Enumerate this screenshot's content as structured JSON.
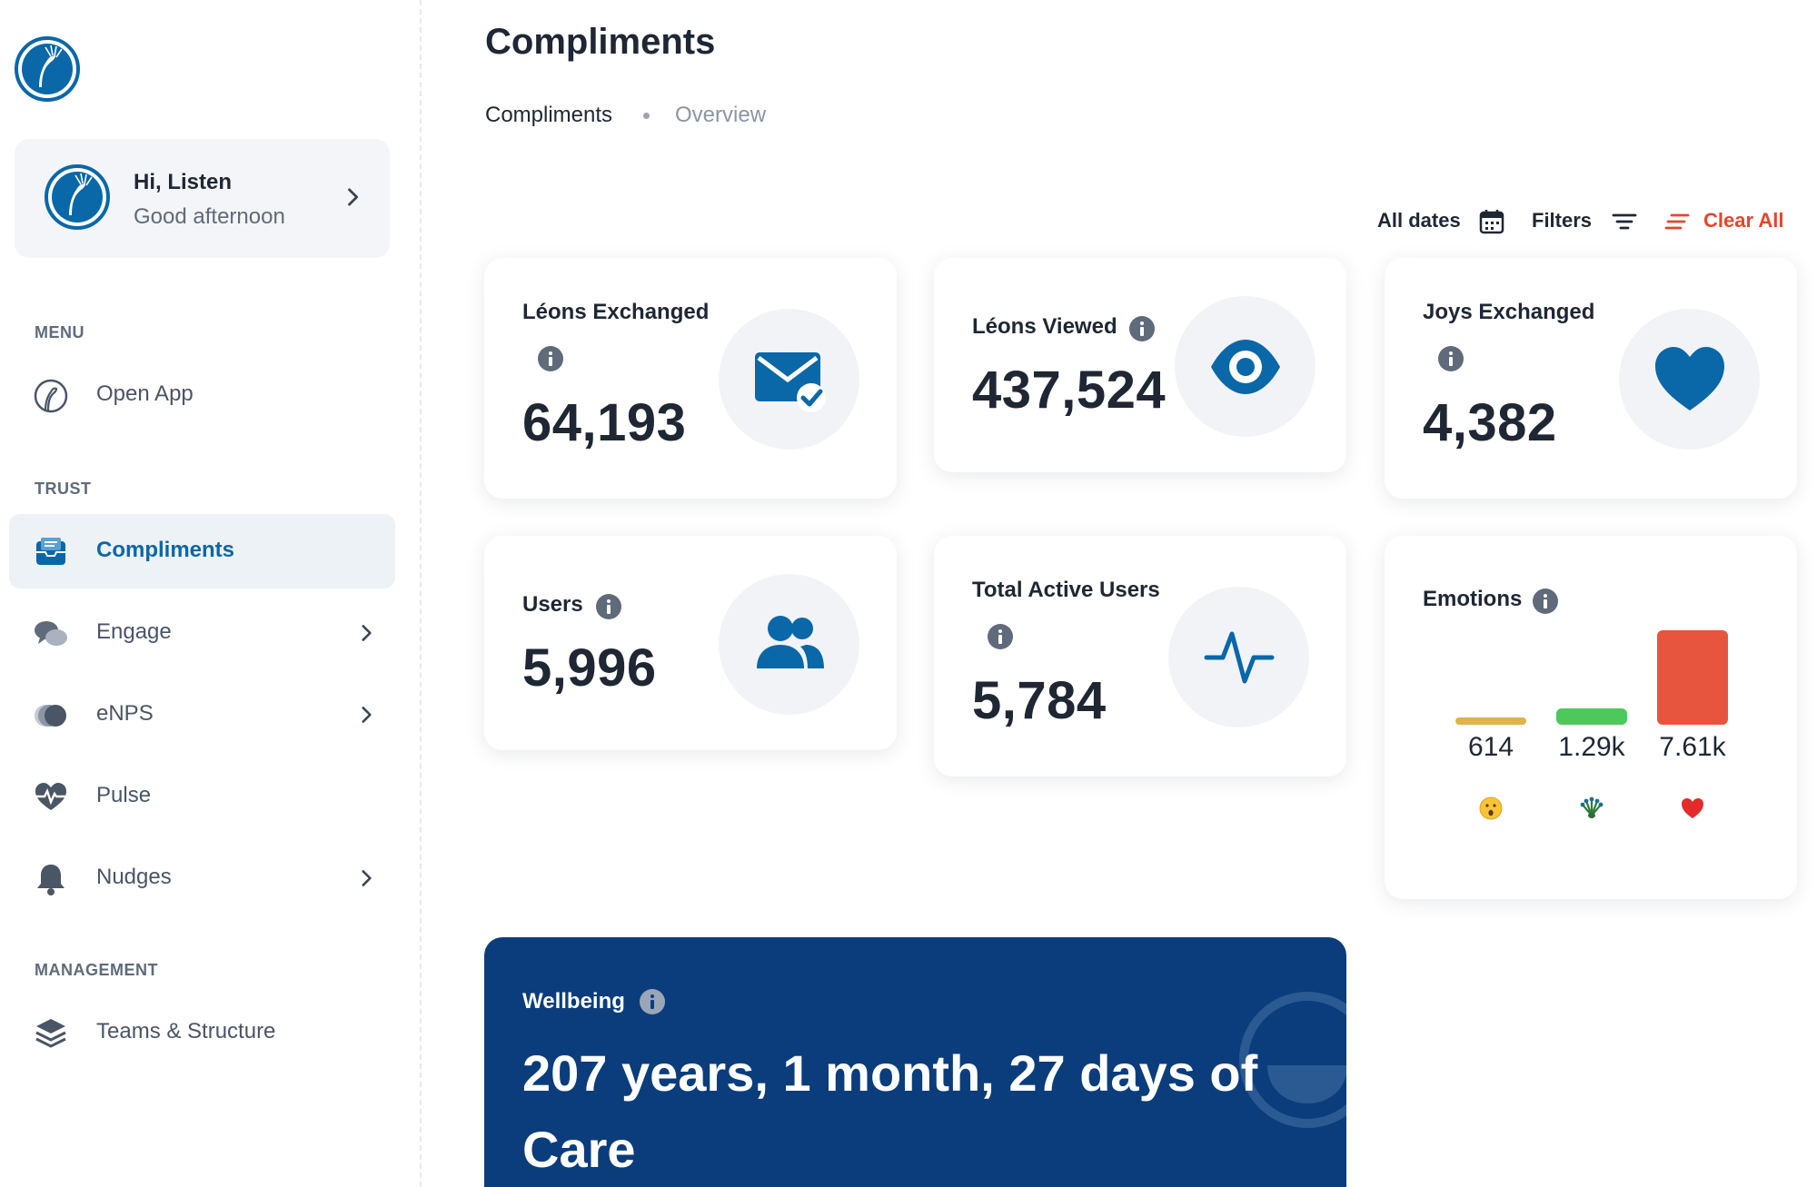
{
  "user": {
    "greeting": "Hi, Listen",
    "subtitle": "Good afternoon"
  },
  "sidebar": {
    "menu_label": "MENU",
    "open_app": "Open App",
    "trust_label": "TRUST",
    "trust_items": [
      {
        "label": "Compliments",
        "icon": "inbox-icon",
        "active": true
      },
      {
        "label": "Engage",
        "icon": "chat-bubbles-icon"
      },
      {
        "label": "eNPS",
        "icon": "toggle-circles-icon"
      },
      {
        "label": "Pulse",
        "icon": "heart-pulse-icon"
      },
      {
        "label": "Nudges",
        "icon": "bell-icon"
      }
    ],
    "management_label": "MANAGEMENT",
    "teams": "Teams & Structure"
  },
  "header": {
    "title": "Compliments",
    "breadcrumb": [
      "Compliments",
      "Overview"
    ]
  },
  "toolbar": {
    "dates": "All dates",
    "filters": "Filters",
    "clear": "Clear All"
  },
  "stats": {
    "leons_exchanged": {
      "label": "Léons Exchanged",
      "value": "64,193",
      "icon": "envelope-check-icon"
    },
    "leons_viewed": {
      "label": "Léons Viewed",
      "value": "437,524",
      "icon": "eye-icon"
    },
    "joys_exchanged": {
      "label": "Joys Exchanged",
      "value": "4,382",
      "icon": "heart-icon"
    },
    "users": {
      "label": "Users",
      "value": "5,996",
      "icon": "users-icon"
    },
    "active_users": {
      "label": "Total Active Users",
      "value": "5,784",
      "icon": "activity-icon"
    }
  },
  "emotions": {
    "label": "Emotions",
    "items": [
      {
        "value": "614",
        "icon": "surprised-face-icon",
        "color": "#e0b24a",
        "fraction": 0.08
      },
      {
        "value": "1.29k",
        "icon": "peacock-icon",
        "color": "#4cc95a",
        "fraction": 0.17
      },
      {
        "value": "7.61k",
        "icon": "red-heart-icon",
        "color": "#e8553f",
        "fraction": 1.0
      }
    ]
  },
  "wellbeing": {
    "label": "Wellbeing",
    "value": "207 years, 1 month, 27 days of Care"
  },
  "colors": {
    "primary": "#0a67a8",
    "navy": "#0b3d7c",
    "danger": "#e5462b"
  }
}
